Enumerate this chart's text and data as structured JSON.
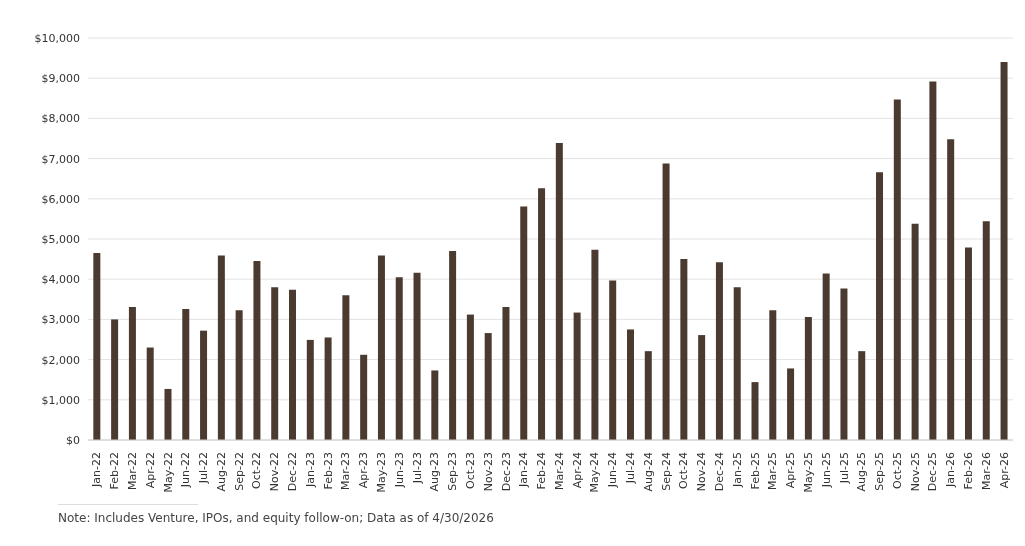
{
  "chart_data": {
    "type": "bar",
    "categories": [
      "Jan-22",
      "Feb-22",
      "Mar-22",
      "Apr-22",
      "May-22",
      "Jun-22",
      "Jul-22",
      "Aug-22",
      "Sep-22",
      "Oct-22",
      "Nov-22",
      "Dec-22",
      "Jan-23",
      "Feb-23",
      "Mar-23",
      "Apr-23",
      "May-23",
      "Jun-23",
      "Jul-23",
      "Aug-23",
      "Sep-23",
      "Oct-23",
      "Nov-23",
      "Dec-23",
      "Jan-24",
      "Feb-24",
      "Mar-24",
      "Apr-24",
      "May-24",
      "Jun-24",
      "Jul-24",
      "Aug-24",
      "Sep-24",
      "Oct-24",
      "Nov-24",
      "Dec-24",
      "Jan-25",
      "Feb-25",
      "Mar-25",
      "Apr-25",
      "May-25",
      "Jun-25",
      "Jul-25",
      "Aug-25",
      "Sep-25",
      "Oct-25",
      "Nov-25",
      "Dec-25",
      "Jan-26",
      "Feb-26",
      "Mar-26",
      "Apr-26"
    ],
    "values": [
      4650,
      3000,
      3310,
      2300,
      1270,
      3260,
      2720,
      4590,
      3230,
      4450,
      3800,
      3740,
      2490,
      2550,
      3600,
      2120,
      4590,
      4050,
      4160,
      1730,
      4700,
      3120,
      2660,
      3310,
      5810,
      6260,
      7390,
      3170,
      4730,
      3970,
      2750,
      2210,
      6880,
      4500,
      2610,
      4420,
      3800,
      1440,
      3230,
      1780,
      3060,
      4140,
      3770,
      2210,
      6660,
      8470,
      5380,
      8920,
      7480,
      4790,
      5440,
      9400
    ],
    "color": "#4b3a2f",
    "ylim": [
      0,
      10000
    ],
    "yticks": [
      {
        "value": 0,
        "label": "$0"
      },
      {
        "value": 1000,
        "label": "$1,000"
      },
      {
        "value": 2000,
        "label": "$2,000"
      },
      {
        "value": 3000,
        "label": "$3,000"
      },
      {
        "value": 4000,
        "label": "$4,000"
      },
      {
        "value": 5000,
        "label": "$5,000"
      },
      {
        "value": 6000,
        "label": "$6,000"
      },
      {
        "value": 7000,
        "label": "$7,000"
      },
      {
        "value": 8000,
        "label": "$8,000"
      },
      {
        "value": 9000,
        "label": "$9,000"
      },
      {
        "value": 10000,
        "label": "$10,000"
      }
    ],
    "grid": "y",
    "annotations": [
      "Note: Includes Venture, IPOs, and equity follow-on; Data as of 4/30/2026"
    ]
  }
}
